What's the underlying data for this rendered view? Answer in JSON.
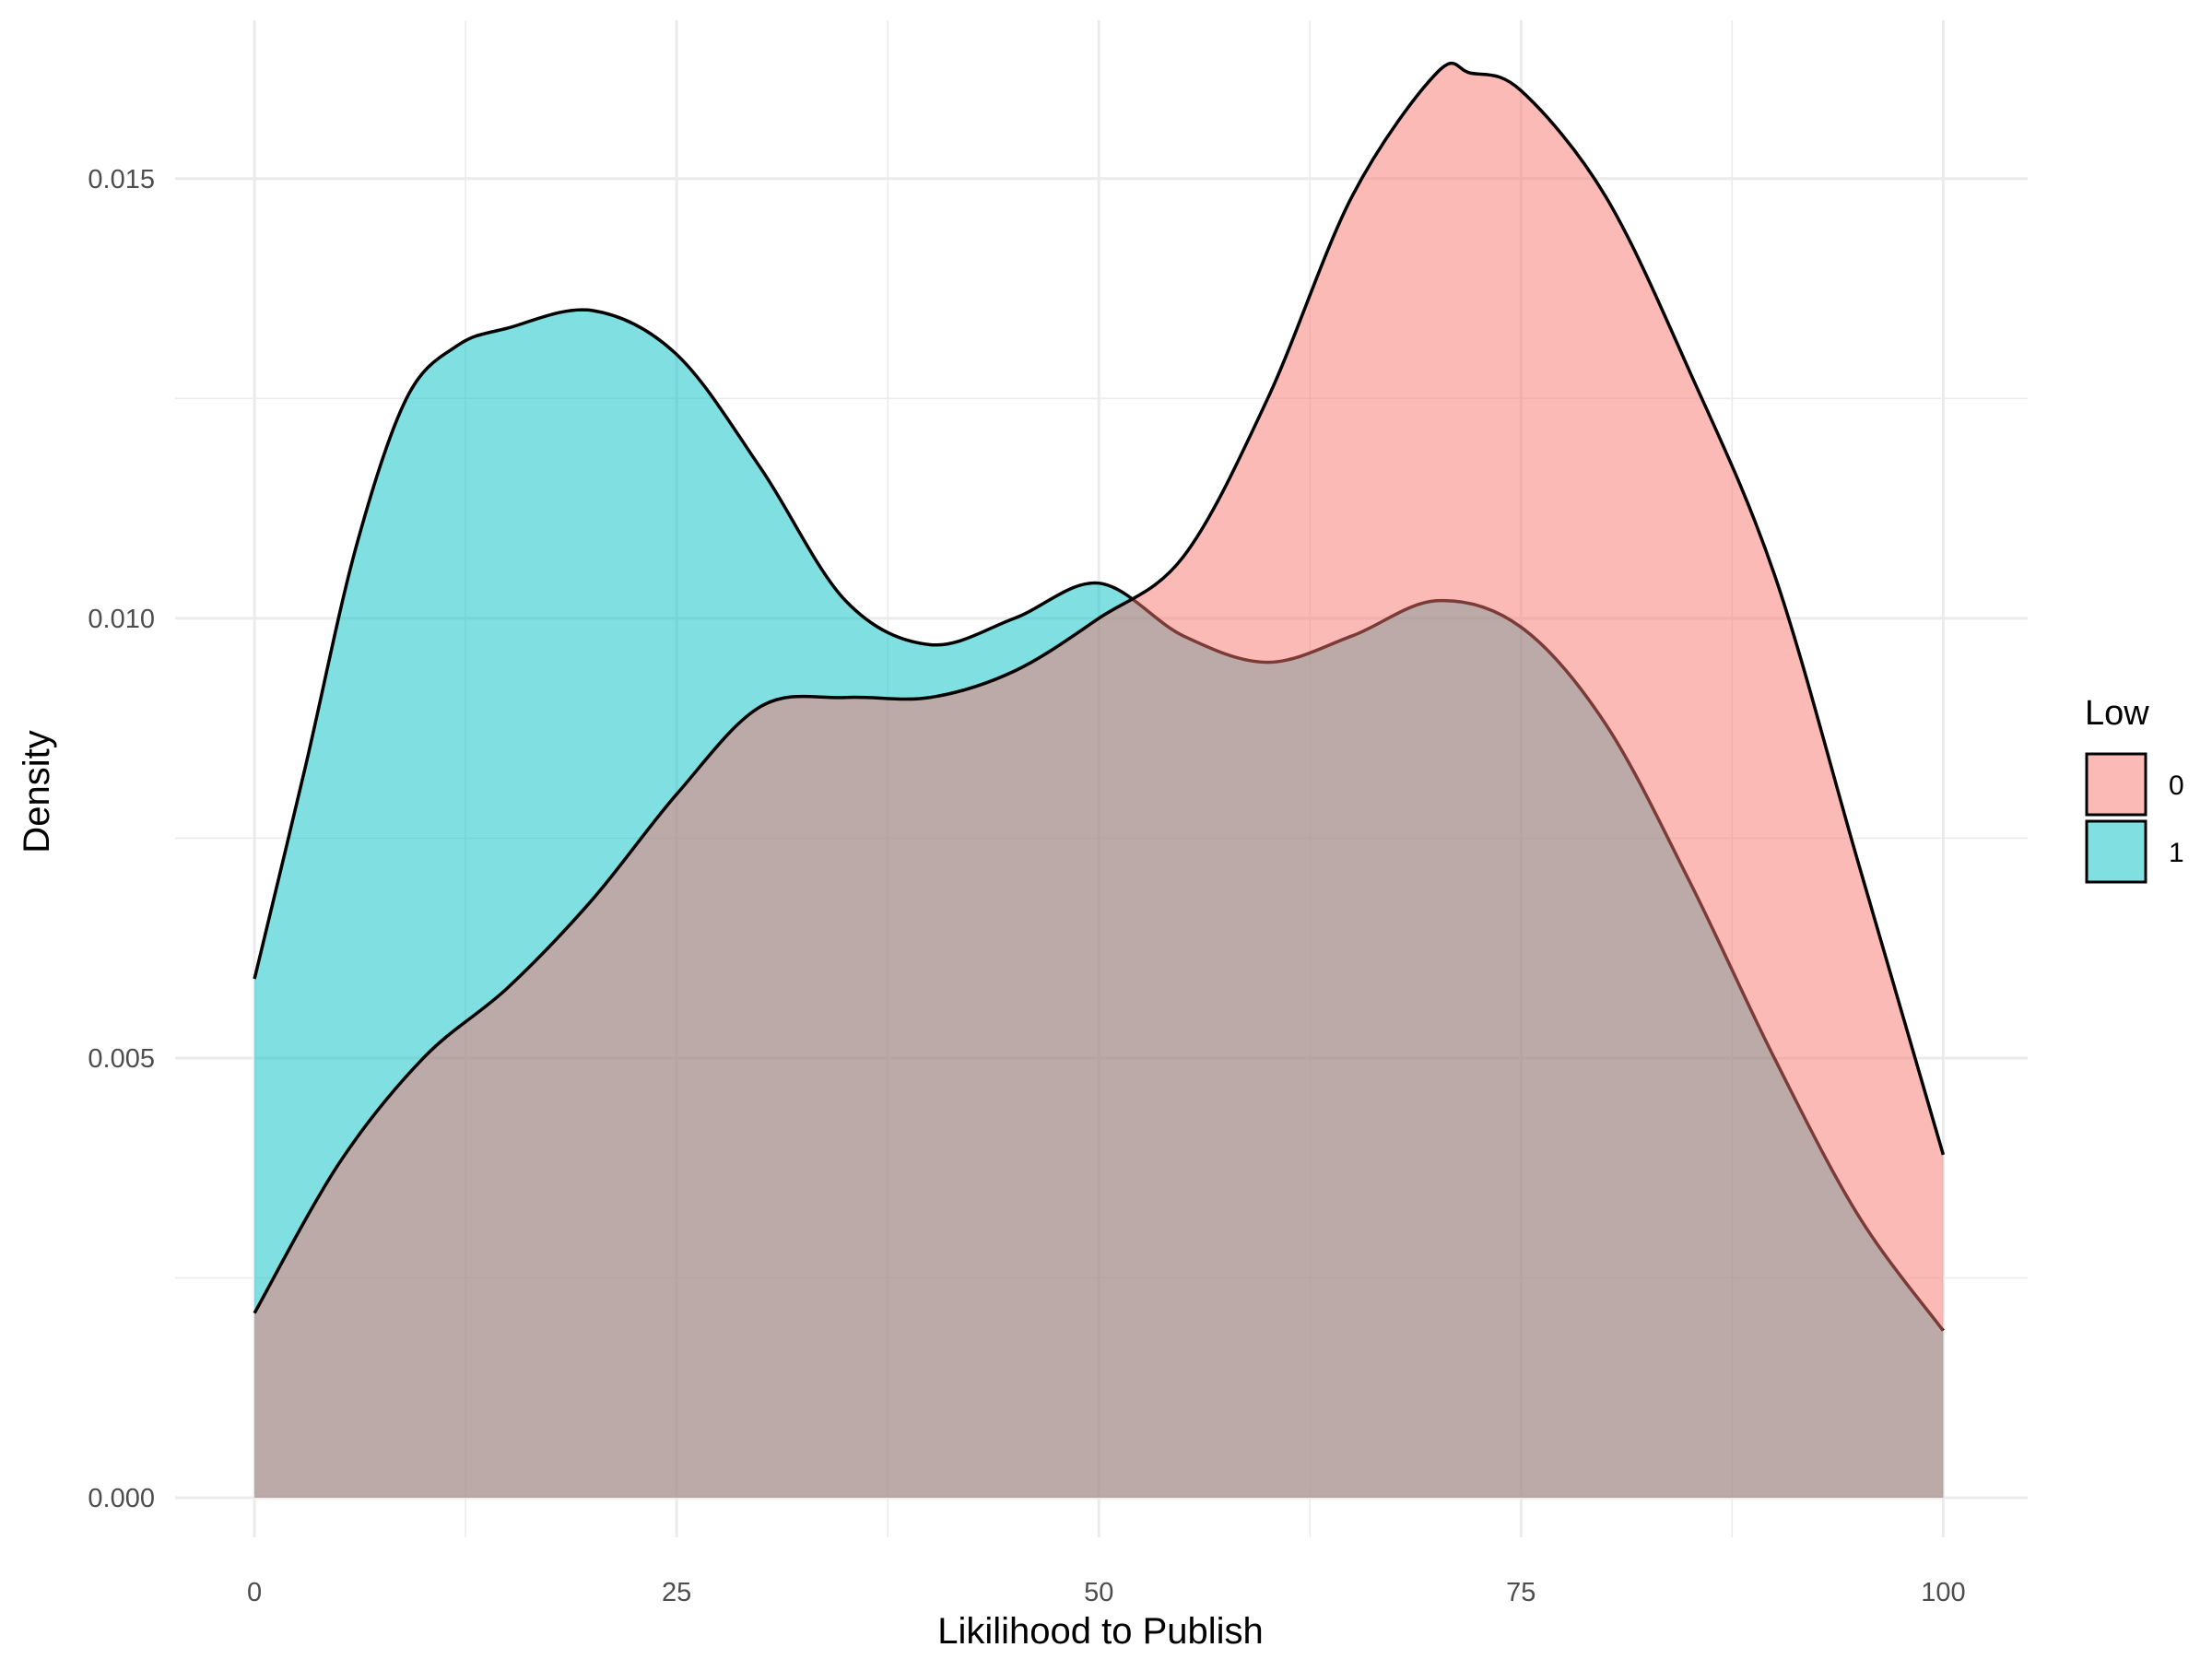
{
  "chart_data": {
    "type": "area",
    "subtype": "density",
    "xlabel": "Likilihood to Publish",
    "ylabel": "Density",
    "xlim": [
      -4.7,
      105
    ],
    "ylim": [
      -0.00045,
      0.0168
    ],
    "x_ticks": [
      0,
      25,
      50,
      75,
      100
    ],
    "x_tick_labels": [
      "0",
      "25",
      "50",
      "75",
      "100"
    ],
    "y_ticks": [
      0,
      0.005,
      0.01,
      0.015
    ],
    "y_tick_labels": [
      "0.000",
      "0.005",
      "0.010",
      "0.015"
    ],
    "grid": true,
    "legend": {
      "title": "Low",
      "position": "right",
      "entries": [
        {
          "label": "0",
          "color": "#F8766D"
        },
        {
          "label": "1",
          "color": "#00BFC4"
        }
      ]
    },
    "fill_alpha": 0.5,
    "series": [
      {
        "name": "0",
        "color": "#F8766D",
        "x": [
          0,
          5,
          10,
          15,
          20,
          25,
          30,
          35,
          40,
          45,
          50,
          55,
          60,
          65,
          70,
          72,
          75,
          80,
          85,
          90,
          95,
          100
        ],
        "y": [
          0.0021,
          0.0038,
          0.005,
          0.0058,
          0.0068,
          0.008,
          0.009,
          0.0091,
          0.0091,
          0.0094,
          0.01,
          0.0107,
          0.0125,
          0.0148,
          0.0162,
          0.0162,
          0.016,
          0.0148,
          0.0128,
          0.0105,
          0.0072,
          0.0039
        ]
      },
      {
        "name": "1",
        "color": "#00BFC4",
        "x": [
          0,
          3,
          6,
          9,
          12,
          15,
          20,
          25,
          30,
          35,
          40,
          45,
          50,
          55,
          60,
          65,
          70,
          75,
          80,
          85,
          90,
          95,
          100
        ],
        "y": [
          0.0059,
          0.0083,
          0.0108,
          0.0125,
          0.0131,
          0.0133,
          0.0135,
          0.013,
          0.0117,
          0.0102,
          0.0097,
          0.01,
          0.0104,
          0.0098,
          0.0095,
          0.0098,
          0.0102,
          0.0099,
          0.0088,
          0.007,
          0.005,
          0.0032,
          0.0019
        ]
      }
    ]
  }
}
